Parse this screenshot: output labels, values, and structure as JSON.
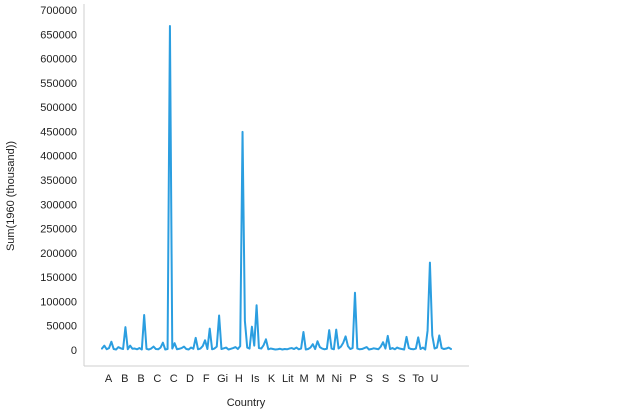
{
  "chart_data": {
    "type": "line",
    "title": "",
    "xlabel": "Country",
    "ylabel": "Sum(1960 (thousand))",
    "ylim": [
      0,
      700000
    ],
    "y_ticks": [
      0,
      50000,
      100000,
      150000,
      200000,
      250000,
      300000,
      350000,
      400000,
      450000,
      500000,
      550000,
      600000,
      650000,
      700000
    ],
    "x_tick_labels": [
      "A",
      "B",
      "B",
      "C",
      "C",
      "D",
      "F",
      "Gi",
      "H",
      "Is",
      "K",
      "Lit",
      "M",
      "M",
      "Ni",
      "P",
      "S",
      "S",
      "S",
      "To",
      "U"
    ],
    "grid": false,
    "legend": "none",
    "series": [
      {
        "color": "#2b9ee0",
        "values": [
          3000,
          9000,
          1500,
          4000,
          17000,
          2000,
          1000,
          6000,
          3500,
          2000,
          47000,
          1500,
          9000,
          2500,
          3000,
          1500,
          4000,
          1000,
          72000,
          2500,
          1000,
          3000,
          7000,
          2000,
          1500,
          5000,
          15000,
          1000,
          2000,
          667000,
          3000,
          14000,
          1500,
          2500,
          4000,
          7000,
          2000,
          1000,
          5000,
          2500,
          25000,
          1500,
          3000,
          8000,
          20000,
          2000,
          44000,
          1500,
          3000,
          7000,
          71000,
          2000,
          3500,
          5000,
          1000,
          2500,
          4000,
          6000,
          2000,
          8000,
          449000,
          60000,
          5000,
          3000,
          48000,
          9000,
          92000,
          4000,
          3000,
          10000,
          22000,
          1500,
          3000,
          2000,
          1000,
          1500,
          2500,
          1000,
          2000,
          1500,
          3000,
          4000,
          2000,
          5000,
          1500,
          3000,
          37000,
          1000,
          2000,
          5000,
          12000,
          2000,
          18000,
          6000,
          3000,
          1500,
          2500,
          41000,
          3000,
          1500,
          42000,
          3000,
          7000,
          15000,
          28000,
          8000,
          2000,
          4000,
          118000,
          3000,
          1500,
          2000,
          4000,
          6000,
          1000,
          2000,
          3500,
          2500,
          1500,
          7000,
          16000,
          3000,
          29000,
          2000,
          4000,
          1500,
          5000,
          3000,
          2000,
          1000,
          27000,
          4000,
          2000,
          1500,
          3000,
          26000,
          2000,
          5000,
          1000,
          40000,
          180000,
          30000,
          3000,
          5000,
          30000,
          4000,
          2000,
          3000,
          5000,
          2000
        ]
      }
    ]
  }
}
